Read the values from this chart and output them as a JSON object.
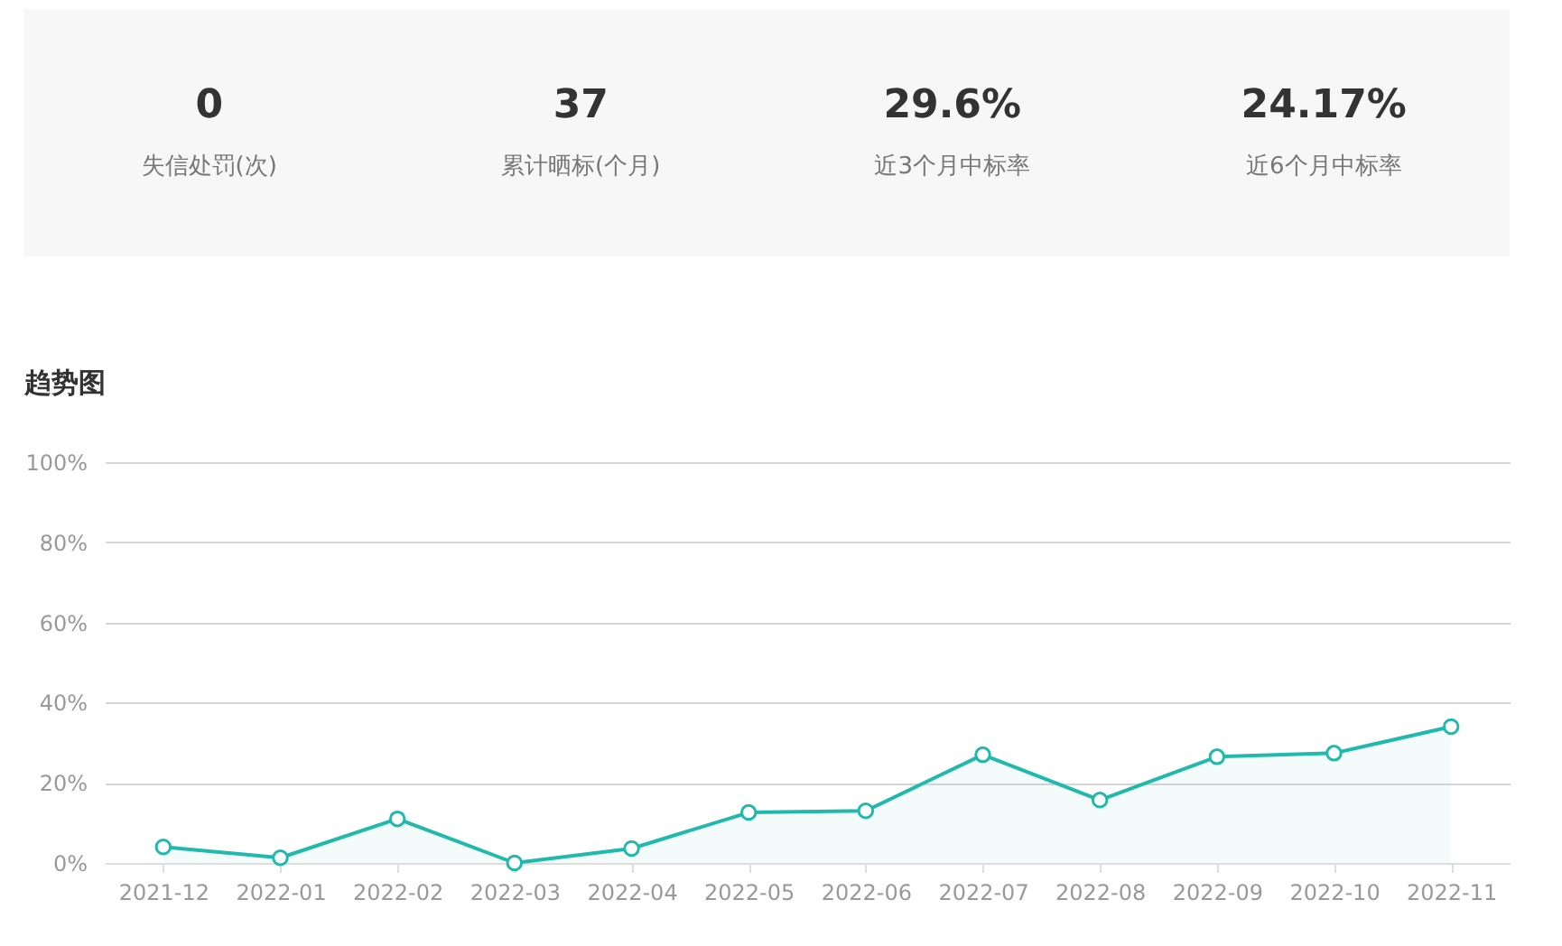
{
  "chart_data": [
    {
      "type": "other",
      "annotations": [
        "0",
        "失信处罚(次)",
        "37",
        "累计晒标(个月)",
        "29.6%",
        "近3个月中标率",
        "24.17%",
        "近6个月中标率"
      ]
    },
    {
      "type": "area",
      "title": "趋势图",
      "categories": [
        "2021-12",
        "2022-01",
        "2022-02",
        "2022-03",
        "2022-04",
        "2022-05",
        "2022-06",
        "2022-07",
        "2022-08",
        "2022-09",
        "2022-10",
        "2022-11"
      ],
      "series": [
        {
          "color": "#20b9ab",
          "values": [
            4,
            1.3,
            11,
            0,
            3.6,
            12.6,
            13,
            27,
            15.7,
            26.5,
            27.4,
            34
          ]
        }
      ],
      "ylim": [
        0,
        100
      ],
      "yticks": [
        {
          "value": 0,
          "label": "0%"
        },
        {
          "value": 20,
          "label": "20%"
        },
        {
          "value": 40,
          "label": "40%"
        },
        {
          "value": 60,
          "label": "60%"
        },
        {
          "value": 80,
          "label": "80%"
        },
        {
          "value": 100,
          "label": "100%"
        }
      ],
      "grid": "y",
      "marker": "circle"
    }
  ]
}
